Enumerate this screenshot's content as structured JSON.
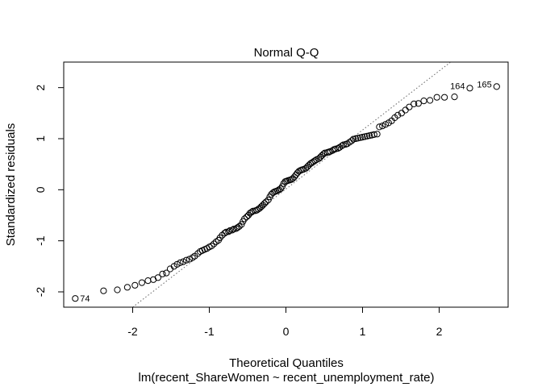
{
  "chart_data": {
    "type": "scatter",
    "title": "Normal Q-Q",
    "xlabel": "Theoretical Quantiles",
    "subtitle": "lm(recent_ShareWomen ~ recent_unemployment_rate)",
    "ylabel": "Standardized residuals",
    "xlim": [
      -2.9,
      2.9
    ],
    "ylim": [
      -2.3,
      2.5
    ],
    "x_ticks": [
      -2,
      -1,
      0,
      1,
      2
    ],
    "y_ticks": [
      -2,
      -1,
      0,
      1,
      2
    ],
    "reference_line": {
      "style": "dotted",
      "points": [
        [
          -2.0,
          -2.3
        ],
        [
          2.15,
          2.5
        ]
      ]
    },
    "labeled_points": [
      {
        "label": "74",
        "x": -2.75,
        "y": -2.13
      },
      {
        "label": "164",
        "x": 2.4,
        "y": 1.99
      },
      {
        "label": "165",
        "x": 2.75,
        "y": 2.02
      }
    ],
    "points": [
      [
        -2.75,
        -2.13
      ],
      [
        -2.38,
        -1.98
      ],
      [
        -2.2,
        -1.96
      ],
      [
        -2.07,
        -1.91
      ],
      [
        -1.97,
        -1.87
      ],
      [
        -1.88,
        -1.82
      ],
      [
        -1.8,
        -1.78
      ],
      [
        -1.73,
        -1.76
      ],
      [
        -1.67,
        -1.72
      ],
      [
        -1.61,
        -1.65
      ],
      [
        -1.56,
        -1.63
      ],
      [
        -1.51,
        -1.55
      ],
      [
        -1.46,
        -1.5
      ],
      [
        -1.42,
        -1.46
      ],
      [
        -1.38,
        -1.43
      ],
      [
        -1.34,
        -1.41
      ],
      [
        -1.3,
        -1.38
      ],
      [
        -1.26,
        -1.36
      ],
      [
        -1.22,
        -1.33
      ],
      [
        -1.19,
        -1.3
      ],
      [
        -1.15,
        -1.25
      ],
      [
        -1.12,
        -1.21
      ],
      [
        -1.09,
        -1.19
      ],
      [
        -1.06,
        -1.17
      ],
      [
        -1.03,
        -1.15
      ],
      [
        -1.0,
        -1.12
      ],
      [
        -0.97,
        -1.1
      ],
      [
        -0.94,
        -1.06
      ],
      [
        -0.91,
        -1.02
      ],
      [
        -0.88,
        -0.99
      ],
      [
        -0.86,
        -0.94
      ],
      [
        -0.83,
        -0.89
      ],
      [
        -0.8,
        -0.85
      ],
      [
        -0.78,
        -0.83
      ],
      [
        -0.75,
        -0.82
      ],
      [
        -0.73,
        -0.8
      ],
      [
        -0.7,
        -0.79
      ],
      [
        -0.68,
        -0.77
      ],
      [
        -0.65,
        -0.76
      ],
      [
        -0.63,
        -0.74
      ],
      [
        -0.61,
        -0.72
      ],
      [
        -0.58,
        -0.68
      ],
      [
        -0.56,
        -0.62
      ],
      [
        -0.54,
        -0.57
      ],
      [
        -0.51,
        -0.53
      ],
      [
        -0.49,
        -0.5
      ],
      [
        -0.47,
        -0.46
      ],
      [
        -0.45,
        -0.44
      ],
      [
        -0.43,
        -0.42
      ],
      [
        -0.4,
        -0.41
      ],
      [
        -0.38,
        -0.4
      ],
      [
        -0.36,
        -0.38
      ],
      [
        -0.34,
        -0.36
      ],
      [
        -0.32,
        -0.33
      ],
      [
        -0.3,
        -0.3
      ],
      [
        -0.28,
        -0.27
      ],
      [
        -0.26,
        -0.24
      ],
      [
        -0.23,
        -0.2
      ],
      [
        -0.21,
        -0.14
      ],
      [
        -0.19,
        -0.09
      ],
      [
        -0.17,
        -0.06
      ],
      [
        -0.15,
        -0.04
      ],
      [
        -0.13,
        -0.03
      ],
      [
        -0.11,
        -0.02
      ],
      [
        -0.09,
        0.0
      ],
      [
        -0.07,
        0.02
      ],
      [
        -0.05,
        0.06
      ],
      [
        -0.03,
        0.12
      ],
      [
        -0.01,
        0.16
      ],
      [
        0.01,
        0.17
      ],
      [
        0.03,
        0.18
      ],
      [
        0.05,
        0.19
      ],
      [
        0.07,
        0.2
      ],
      [
        0.09,
        0.22
      ],
      [
        0.11,
        0.25
      ],
      [
        0.13,
        0.29
      ],
      [
        0.15,
        0.33
      ],
      [
        0.17,
        0.36
      ],
      [
        0.19,
        0.38
      ],
      [
        0.21,
        0.39
      ],
      [
        0.23,
        0.4
      ],
      [
        0.26,
        0.42
      ],
      [
        0.28,
        0.45
      ],
      [
        0.3,
        0.48
      ],
      [
        0.32,
        0.51
      ],
      [
        0.34,
        0.53
      ],
      [
        0.36,
        0.55
      ],
      [
        0.38,
        0.57
      ],
      [
        0.4,
        0.59
      ],
      [
        0.43,
        0.61
      ],
      [
        0.45,
        0.64
      ],
      [
        0.47,
        0.67
      ],
      [
        0.49,
        0.7
      ],
      [
        0.51,
        0.72
      ],
      [
        0.54,
        0.73
      ],
      [
        0.56,
        0.74
      ],
      [
        0.58,
        0.75
      ],
      [
        0.61,
        0.77
      ],
      [
        0.63,
        0.79
      ],
      [
        0.65,
        0.8
      ],
      [
        0.68,
        0.81
      ],
      [
        0.7,
        0.83
      ],
      [
        0.73,
        0.86
      ],
      [
        0.75,
        0.88
      ],
      [
        0.78,
        0.89
      ],
      [
        0.8,
        0.9
      ],
      [
        0.83,
        0.93
      ],
      [
        0.86,
        0.96
      ],
      [
        0.88,
        0.99
      ],
      [
        0.91,
        1.0
      ],
      [
        0.94,
        1.01
      ],
      [
        0.97,
        1.02
      ],
      [
        1.0,
        1.03
      ],
      [
        1.03,
        1.04
      ],
      [
        1.06,
        1.05
      ],
      [
        1.09,
        1.06
      ],
      [
        1.12,
        1.07
      ],
      [
        1.15,
        1.08
      ],
      [
        1.19,
        1.09
      ],
      [
        1.22,
        1.23
      ],
      [
        1.26,
        1.25
      ],
      [
        1.3,
        1.28
      ],
      [
        1.34,
        1.31
      ],
      [
        1.38,
        1.35
      ],
      [
        1.42,
        1.41
      ],
      [
        1.46,
        1.46
      ],
      [
        1.51,
        1.5
      ],
      [
        1.56,
        1.56
      ],
      [
        1.61,
        1.62
      ],
      [
        1.67,
        1.68
      ],
      [
        1.73,
        1.69
      ],
      [
        1.8,
        1.74
      ],
      [
        1.88,
        1.75
      ],
      [
        1.97,
        1.81
      ],
      [
        2.07,
        1.81
      ],
      [
        2.2,
        1.82
      ],
      [
        2.4,
        1.99
      ],
      [
        2.75,
        2.02
      ]
    ]
  }
}
